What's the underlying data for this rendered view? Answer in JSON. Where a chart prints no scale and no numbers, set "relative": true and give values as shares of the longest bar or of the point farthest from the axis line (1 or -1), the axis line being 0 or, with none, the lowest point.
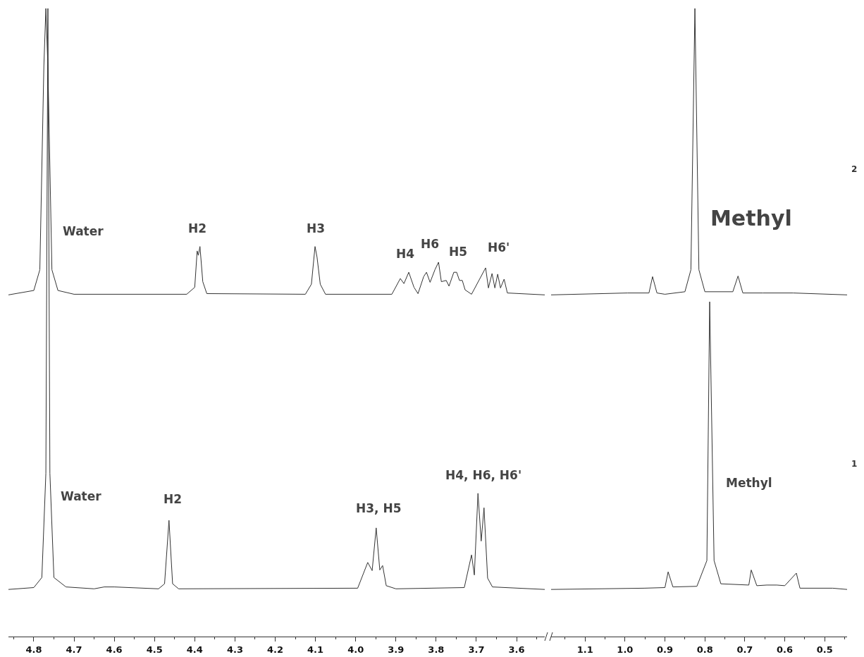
{
  "chart_data": [
    {
      "type": "line",
      "relative": true,
      "xlim": [
        4.863,
        3.53
      ],
      "xticks": [
        {
          "value": 4.85,
          "label": null
        },
        4.8,
        {
          "value": 4.75,
          "label": null
        },
        4.7,
        {
          "value": 4.65,
          "label": null
        },
        4.6,
        {
          "value": 4.55,
          "label": null
        },
        4.5,
        {
          "value": 4.45,
          "label": null
        },
        4.4,
        {
          "value": 4.35,
          "label": null
        },
        4.3,
        {
          "value": 4.25,
          "label": null
        },
        4.2,
        {
          "value": 4.15,
          "label": null
        },
        4.1,
        {
          "value": 4.05,
          "label": null
        },
        {
          "value": 4,
          "label": "4.0"
        },
        {
          "value": 3.95,
          "label": null
        },
        3.9,
        {
          "value": 3.85,
          "label": null
        },
        3.8,
        {
          "value": 3.75,
          "label": null
        },
        3.7,
        {
          "value": 3.65,
          "label": null
        },
        3.6,
        {
          "value": 3.55,
          "label": null
        }
      ],
      "series": [
        {
          "color": "#333333",
          "x": [
            4.863,
            4.8,
            4.785,
            4.775,
            4.77,
            4.765,
            4.755,
            4.74,
            4.7,
            4.42,
            4.4,
            4.394,
            4.391,
            4.387,
            4.38,
            4.37,
            4.125,
            4.11,
            4.101,
            4.096,
            4.088,
            4.075,
            3.91,
            3.889,
            3.88,
            3.868,
            3.855,
            3.845,
            3.831,
            3.824,
            3.815,
            3.803,
            3.794,
            3.787,
            3.775,
            3.768,
            3.756,
            3.749,
            3.742,
            3.735,
            3.728,
            3.712,
            3.677,
            3.67,
            3.661,
            3.654,
            3.647,
            3.64,
            3.631,
            3.623,
            3.53
          ],
          "values": [
            0.544,
            0.551,
            0.584,
            0.908,
            1.0,
            0.908,
            0.584,
            0.551,
            0.545,
            0.545,
            0.556,
            0.614,
            0.607,
            0.621,
            0.565,
            0.546,
            0.545,
            0.561,
            0.621,
            0.604,
            0.561,
            0.545,
            0.545,
            0.57,
            0.562,
            0.58,
            0.556,
            0.546,
            0.573,
            0.58,
            0.564,
            0.584,
            0.596,
            0.565,
            0.567,
            0.558,
            0.58,
            0.58,
            0.567,
            0.567,
            0.552,
            0.545,
            0.587,
            0.555,
            0.578,
            0.555,
            0.577,
            0.555,
            0.569,
            0.547,
            0.544
          ]
        },
        {
          "color": "#333333",
          "x": [
            4.863,
            4.8,
            4.78,
            4.77,
            4.765,
            4.76,
            4.75,
            4.72,
            4.65,
            4.625,
            4.6,
            4.49,
            4.475,
            4.464,
            4.455,
            4.44,
            3.995,
            3.97,
            3.959,
            3.949,
            3.94,
            3.933,
            3.924,
            3.9,
            3.73,
            3.712,
            3.705,
            3.696,
            3.688,
            3.681,
            3.672,
            3.66,
            3.53
          ],
          "values": [
            0.075,
            0.078,
            0.094,
            0.26,
            1.0,
            0.26,
            0.094,
            0.079,
            0.076,
            0.079,
            0.079,
            0.076,
            0.084,
            0.185,
            0.084,
            0.076,
            0.077,
            0.118,
            0.105,
            0.173,
            0.106,
            0.113,
            0.081,
            0.076,
            0.078,
            0.13,
            0.098,
            0.228,
            0.152,
            0.205,
            0.093,
            0.079,
            0.075
          ]
        }
      ],
      "annotations": [
        "Water",
        "H2",
        "H3",
        "H4",
        "H6",
        "H5",
        "H6'",
        "Water",
        "H2",
        "H3, H5",
        "H4, H6, H6'"
      ]
    },
    {
      "type": "line",
      "relative": true,
      "xlim": [
        1.185,
        0.444
      ],
      "xticks": [
        {
          "value": 1.15,
          "label": null
        },
        1.1,
        {
          "value": 1.05,
          "label": null
        },
        {
          "value": 1,
          "label": "1.0"
        },
        {
          "value": 0.95,
          "label": null
        },
        0.9,
        {
          "value": 0.85,
          "label": null
        },
        0.8,
        {
          "value": 0.75,
          "label": null
        },
        0.7,
        {
          "value": 0.65,
          "label": null
        },
        0.6,
        {
          "value": 0.55,
          "label": null
        },
        0.5,
        {
          "value": 0.45,
          "label": null
        }
      ],
      "series": [
        {
          "name": "2",
          "color": "#333333",
          "x": [
            1.185,
            0.994,
            0.94,
            0.931,
            0.92,
            0.9,
            0.85,
            0.835,
            0.825,
            0.815,
            0.8,
            0.73,
            0.717,
            0.705,
            0.655,
            0.579,
            0.444
          ],
          "values": [
            0.544,
            0.547,
            0.547,
            0.573,
            0.547,
            0.545,
            0.549,
            0.584,
            1.0,
            0.584,
            0.549,
            0.549,
            0.574,
            0.547,
            0.547,
            0.547,
            0.544
          ]
        },
        {
          "name": "1",
          "color": "#333333",
          "x": [
            1.185,
            0.952,
            0.9,
            0.892,
            0.88,
            0.82,
            0.795,
            0.788,
            0.777,
            0.76,
            0.69,
            0.684,
            0.67,
            0.645,
            0.62,
            0.6,
            0.571,
            0.562,
            0.48,
            0.444
          ],
          "values": [
            0.075,
            0.077,
            0.078,
            0.103,
            0.079,
            0.08,
            0.121,
            0.533,
            0.121,
            0.084,
            0.082,
            0.106,
            0.081,
            0.082,
            0.082,
            0.081,
            0.101,
            0.077,
            0.077,
            0.075
          ]
        }
      ],
      "annotations": [
        "Methyl",
        "Methyl"
      ]
    }
  ]
}
